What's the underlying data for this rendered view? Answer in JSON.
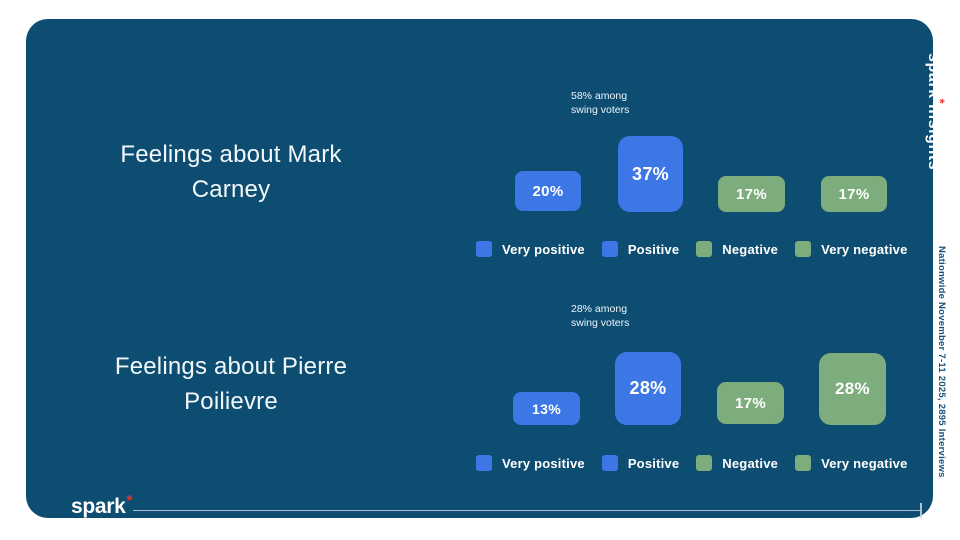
{
  "slide": {
    "background": "#ffffff",
    "card_color": "#0e4d72"
  },
  "colors": {
    "positive": "#3d77e6",
    "negative": "#7ead7d",
    "accent_red": "#e5352b",
    "rule": "#c8d4dd",
    "footnote_text": "#17517a"
  },
  "branding": {
    "footer_logo_text": "spark",
    "footer_logo_mark": "*",
    "vertical_logo_prefix": "spark",
    "vertical_logo_mark": "*",
    "vertical_logo_suffix": "insights",
    "footnote": "Nationwide November 7-11 2025, 2895 Interviews"
  },
  "charts": [
    {
      "title": "Feelings about Mark Carney",
      "annotation_line1": "58% among",
      "annotation_line2": "swing voters",
      "bars": [
        {
          "label": "20%",
          "value": 20,
          "sentiment": "positive"
        },
        {
          "label": "37%",
          "value": 37,
          "sentiment": "positive"
        },
        {
          "label": "17%",
          "value": 17,
          "sentiment": "negative"
        },
        {
          "label": "17%",
          "value": 17,
          "sentiment": "negative"
        }
      ],
      "legend": [
        {
          "label": "Very positive",
          "sentiment": "positive"
        },
        {
          "label": "Positive",
          "sentiment": "positive"
        },
        {
          "label": "Negative",
          "sentiment": "negative"
        },
        {
          "label": "Very negative",
          "sentiment": "negative"
        }
      ]
    },
    {
      "title": "Feelings about Pierre Poilievre",
      "annotation_line1": "28% among",
      "annotation_line2": "swing voters",
      "bars": [
        {
          "label": "13%",
          "value": 13,
          "sentiment": "positive"
        },
        {
          "label": "28%",
          "value": 28,
          "sentiment": "positive"
        },
        {
          "label": "17%",
          "value": 17,
          "sentiment": "negative"
        },
        {
          "label": "28%",
          "value": 28,
          "sentiment": "negative"
        }
      ],
      "legend": [
        {
          "label": "Very positive",
          "sentiment": "positive"
        },
        {
          "label": "Positive",
          "sentiment": "positive"
        },
        {
          "label": "Negative",
          "sentiment": "negative"
        },
        {
          "label": "Very negative",
          "sentiment": "negative"
        }
      ]
    }
  ],
  "chart_data": [
    {
      "type": "bar",
      "title": "Feelings about Mark Carney",
      "categories": [
        "Very positive",
        "Positive",
        "Negative",
        "Very negative"
      ],
      "values": [
        20,
        37,
        17,
        17
      ],
      "unit": "%",
      "annotation": "58% among swing voters",
      "annotation_target": "Positive",
      "legend_position": "bottom",
      "series_colors": [
        "#3d77e6",
        "#3d77e6",
        "#7ead7d",
        "#7ead7d"
      ]
    },
    {
      "type": "bar",
      "title": "Feelings about Pierre Poilievre",
      "categories": [
        "Very positive",
        "Positive",
        "Negative",
        "Very negative"
      ],
      "values": [
        13,
        28,
        17,
        28
      ],
      "unit": "%",
      "annotation": "28% among swing voters",
      "annotation_target": "Positive",
      "legend_position": "bottom",
      "series_colors": [
        "#3d77e6",
        "#3d77e6",
        "#7ead7d",
        "#7ead7d"
      ]
    }
  ]
}
